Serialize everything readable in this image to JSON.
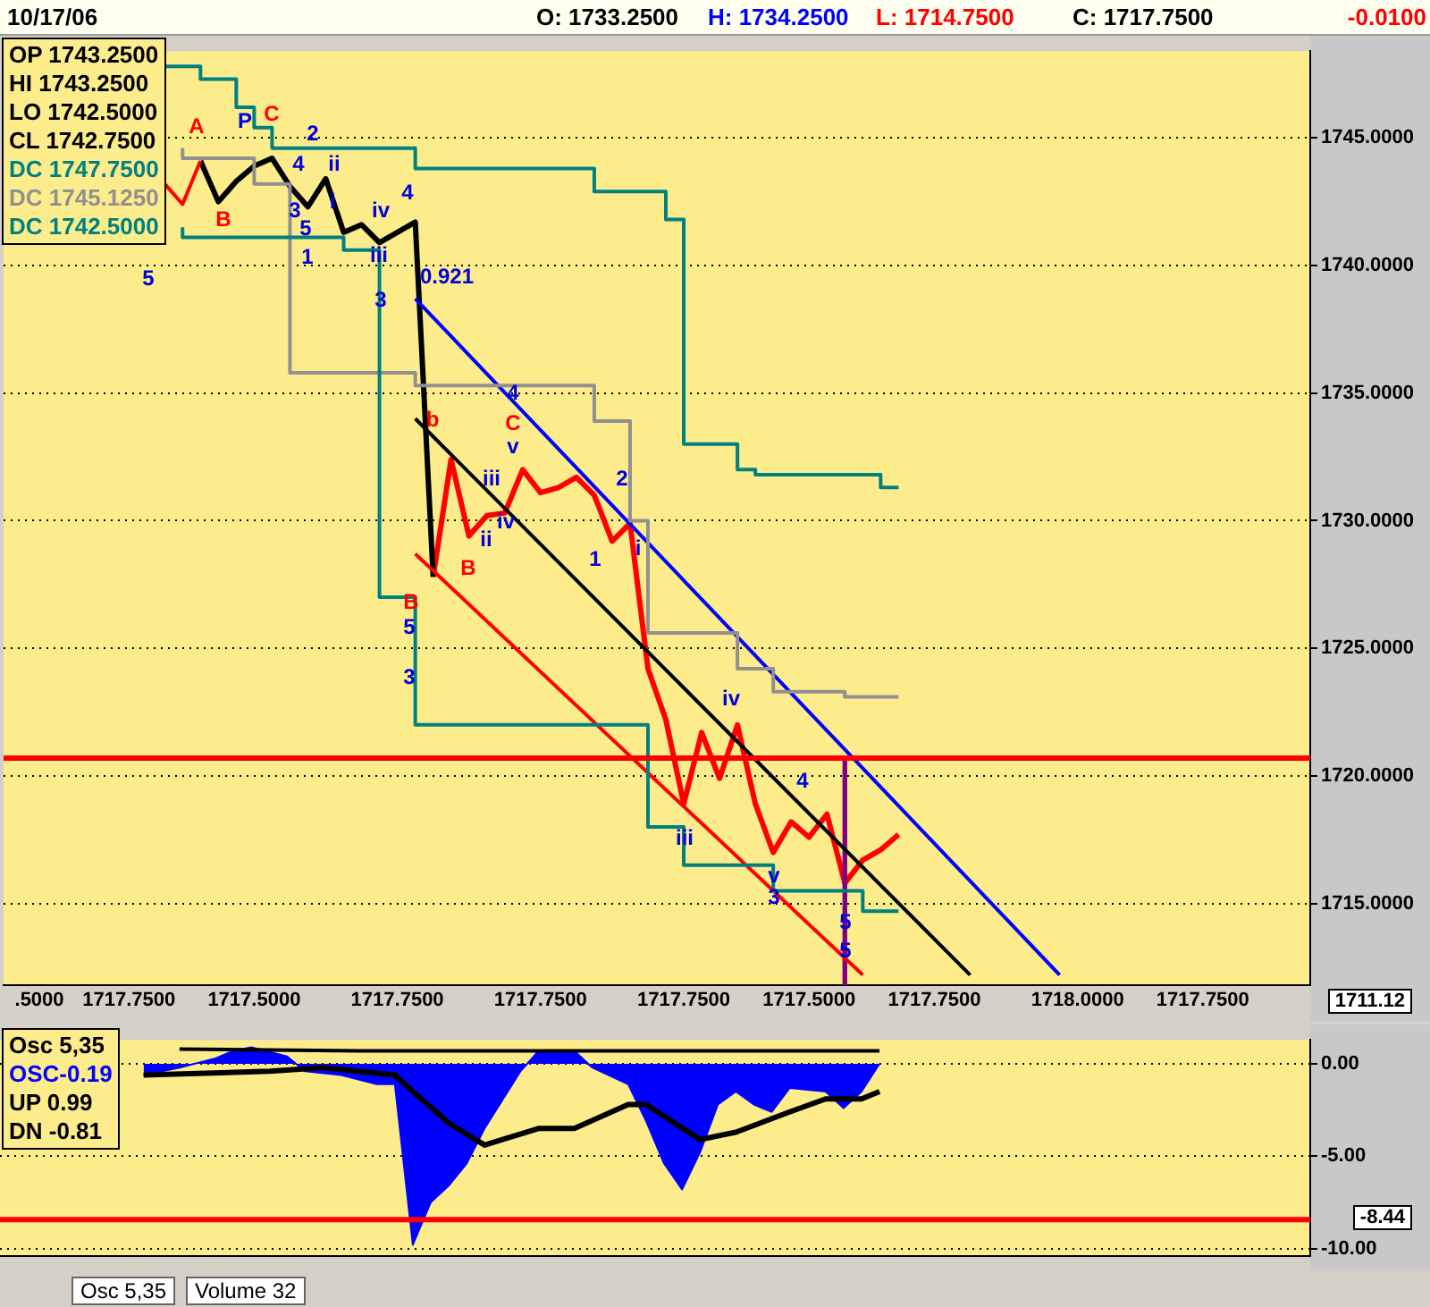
{
  "chart_data": [
    {
      "type": "line",
      "ylim": [
        1711.8,
        1748.4
      ],
      "categories": [
        null,
        null,
        ".5000",
        null,
        null,
        null,
        null,
        "1717.7500",
        null,
        null,
        null,
        null,
        null,
        null,
        "1717.5000",
        null,
        null,
        null,
        null,
        null,
        null,
        null,
        "1717.7500",
        null,
        null,
        null,
        null,
        null,
        null,
        null,
        "1717.7500",
        null,
        null,
        null,
        null,
        null,
        null,
        null,
        "1717.7500",
        null,
        null,
        null,
        null,
        null,
        null,
        "1717.5000",
        null,
        null,
        null,
        null,
        null,
        null,
        "1717.7500",
        null,
        null,
        null,
        null,
        null,
        null,
        null,
        "1718.0000",
        null,
        null,
        null,
        null,
        null,
        null,
        "1717.7500",
        null,
        null,
        null,
        null,
        null,
        null
      ],
      "yticks": [
        {
          "value": 1715,
          "label": "1715.0000"
        },
        {
          "value": 1720,
          "label": "1720.0000"
        },
        {
          "value": 1725,
          "label": "1725.0000"
        },
        {
          "value": 1730,
          "label": "1730.0000"
        },
        {
          "value": 1735,
          "label": "1735.0000"
        },
        {
          "value": 1740,
          "label": "1740.0000"
        },
        {
          "value": 1745,
          "label": "1745.0000"
        }
      ],
      "grid": "y",
      "legend": false,
      "marker": "none",
      "series": [
        {
          "type": "step",
          "color": "#008080",
          "values": [
            null,
            null,
            null,
            null,
            null,
            null,
            null,
            null,
            null,
            1747.8,
            null,
            1747.8,
            null,
            1747.3,
            1746.2,
            1745.4,
            null,
            null,
            null,
            null,
            null,
            null,
            null,
            1744.6,
            null,
            null,
            null,
            null,
            null,
            null,
            null,
            null,
            null,
            1743.8,
            null,
            null,
            null,
            1742.9,
            1741.8,
            null,
            null,
            1733.0,
            1732.0,
            null,
            null,
            null,
            null,
            null,
            null,
            1731.8,
            1731.3,
            null,
            null,
            null,
            null,
            null,
            null,
            null,
            null,
            null,
            null,
            null,
            null,
            null,
            null,
            null,
            null,
            null,
            null,
            null,
            null,
            null,
            null,
            null
          ]
        },
        {
          "type": "step",
          "color": "#008080",
          "values": [
            null,
            null,
            null,
            null,
            null,
            null,
            null,
            null,
            null,
            null,
            1741.5,
            null,
            null,
            null,
            null,
            null,
            null,
            null,
            null,
            1741.1,
            null,
            1740.6,
            null,
            1727.0,
            null,
            null,
            null,
            null,
            null,
            null,
            null,
            null,
            null,
            null,
            null,
            null,
            1722.0,
            null,
            1718.0,
            null,
            null,
            null,
            null,
            1716.5,
            null,
            null,
            null,
            null,
            1715.5,
            1714.7,
            1714.7,
            null,
            null,
            null,
            null,
            null,
            null,
            null,
            null,
            null,
            null,
            null,
            null,
            null,
            null,
            null,
            null,
            null,
            null,
            null,
            null,
            null,
            null,
            null
          ]
        },
        {
          "type": "step",
          "color": "#909090",
          "values": [
            null,
            null,
            null,
            null,
            null,
            null,
            null,
            null,
            null,
            null,
            1744.6,
            null,
            null,
            null,
            1744.2,
            null,
            1743.2,
            null,
            null,
            null,
            null,
            null,
            null,
            1735.8,
            null,
            null,
            null,
            null,
            null,
            null,
            null,
            null,
            null,
            1735.3,
            null,
            1733.9,
            1730.0,
            null,
            null,
            null,
            null,
            1725.6,
            null,
            1724.2,
            null,
            null,
            null,
            1723.3,
            null,
            null,
            1723.1,
            null,
            null,
            null,
            null,
            null,
            null,
            null,
            null,
            null,
            null,
            null,
            null,
            null,
            null,
            null,
            null,
            null,
            null,
            null,
            null,
            null,
            null,
            null
          ]
        },
        {
          "type": "line",
          "color": "#0000ff",
          "values": [
            null,
            null,
            null,
            null,
            null,
            null,
            null,
            null,
            null,
            null,
            null,
            null,
            null,
            null,
            null,
            null,
            null,
            null,
            null,
            null,
            null,
            null,
            null,
            1738.7,
            null,
            null,
            null,
            null,
            null,
            null,
            null,
            null,
            null,
            null,
            null,
            null,
            null,
            null,
            null,
            null,
            null,
            null,
            null,
            null,
            null,
            null,
            null,
            null,
            null,
            null,
            null,
            null,
            null,
            null,
            null,
            null,
            null,
            null,
            null,
            1712.2,
            null,
            null,
            null,
            null,
            null,
            null,
            null,
            null,
            null,
            null,
            null,
            null,
            null,
            null
          ]
        },
        {
          "type": "line",
          "color": "#000000",
          "values": [
            null,
            null,
            null,
            null,
            null,
            null,
            null,
            null,
            null,
            null,
            null,
            null,
            null,
            null,
            null,
            null,
            null,
            null,
            null,
            null,
            null,
            null,
            null,
            1734.0,
            null,
            null,
            null,
            null,
            null,
            null,
            null,
            null,
            null,
            null,
            null,
            null,
            null,
            null,
            null,
            null,
            null,
            null,
            null,
            null,
            null,
            null,
            null,
            null,
            null,
            null,
            null,
            null,
            null,
            null,
            1712.2,
            null,
            null,
            null,
            null,
            null,
            null,
            null,
            null,
            null,
            null,
            null,
            null,
            null,
            null,
            null,
            null,
            null,
            null,
            null
          ]
        },
        {
          "type": "line",
          "color": "#ff0000",
          "values": [
            null,
            null,
            null,
            null,
            null,
            null,
            null,
            null,
            null,
            null,
            null,
            null,
            null,
            null,
            null,
            null,
            null,
            null,
            null,
            null,
            null,
            null,
            null,
            1728.7,
            null,
            null,
            null,
            null,
            null,
            null,
            null,
            null,
            null,
            null,
            null,
            null,
            null,
            null,
            null,
            null,
            null,
            null,
            null,
            null,
            null,
            null,
            null,
            null,
            1712.2,
            null,
            null,
            null,
            null,
            null,
            null,
            null,
            null,
            null,
            null,
            null,
            null,
            null,
            null,
            null,
            null,
            null,
            null,
            null,
            null,
            null,
            null,
            null,
            null,
            null
          ]
        },
        {
          "type": "bar",
          "color": "#800080",
          "values": [
            null,
            null,
            null,
            null,
            null,
            null,
            null,
            null,
            null,
            null,
            null,
            null,
            null,
            null,
            null,
            null,
            null,
            null,
            null,
            null,
            null,
            null,
            null,
            null,
            null,
            null,
            null,
            null,
            null,
            null,
            null,
            null,
            null,
            null,
            null,
            null,
            null,
            null,
            null,
            null,
            null,
            null,
            null,
            null,
            null,
            null,
            null,
            1720.7,
            null,
            null,
            null,
            null,
            null,
            null,
            null,
            null,
            null,
            null,
            null,
            null,
            null,
            null,
            null,
            null,
            null,
            null,
            null,
            null,
            null,
            null,
            null,
            null,
            null,
            null
          ]
        },
        {
          "type": "line",
          "color": "#ff0000",
          "values": [
            null,
            null,
            null,
            null,
            null,
            null,
            null,
            null,
            null,
            1743.2,
            1742.4,
            1744.1,
            null,
            null,
            null,
            null,
            null,
            null,
            null,
            null,
            null,
            null,
            null,
            null,
            null,
            null,
            null,
            null,
            null,
            null,
            null,
            null,
            null,
            null,
            null,
            null,
            null,
            null,
            null,
            null,
            null,
            null,
            null,
            null,
            null,
            null,
            null,
            null,
            null,
            null,
            null,
            null,
            null,
            null,
            null,
            null,
            null,
            null,
            null,
            null,
            null,
            null,
            null,
            null,
            null,
            null,
            null,
            null,
            null,
            null,
            null,
            null,
            null,
            null
          ]
        },
        {
          "type": "line",
          "color": "#000000",
          "values": [
            null,
            null,
            null,
            null,
            null,
            null,
            null,
            null,
            null,
            null,
            null,
            1744.1,
            1742.5,
            1743.3,
            1743.9,
            1744.2,
            1743.1,
            1742.3,
            1743.4,
            1741.3,
            1741.6,
            1740.9,
            1741.3,
            1741.7,
            1727.8,
            null,
            null,
            null,
            null,
            null,
            null,
            null,
            null,
            null,
            null,
            null,
            null,
            null,
            null,
            null,
            null,
            null,
            null,
            null,
            null,
            null,
            null,
            null,
            null,
            null,
            null,
            null,
            null,
            null,
            null,
            null,
            null,
            null,
            null,
            null,
            null,
            null,
            null,
            null,
            null,
            null,
            null,
            null,
            null,
            null,
            null,
            null,
            null,
            null
          ]
        },
        {
          "type": "line",
          "color": "#ff0000",
          "values": [
            null,
            null,
            null,
            null,
            null,
            null,
            null,
            null,
            null,
            null,
            null,
            null,
            null,
            null,
            null,
            null,
            null,
            null,
            null,
            null,
            null,
            null,
            null,
            null,
            1727.8,
            1732.4,
            1729.4,
            1730.2,
            1730.3,
            1732.0,
            1731.1,
            1731.3,
            1731.7,
            1731.0,
            1729.2,
            1729.9,
            1724.2,
            1722.2,
            1718.9,
            1721.7,
            1719.9,
            1722.0,
            1718.9,
            1717.0,
            1718.2,
            1717.6,
            1718.5,
            1715.8,
            1716.7,
            1717.1,
            1717.7,
            null,
            null,
            null,
            null,
            null,
            null,
            null,
            null,
            null,
            null,
            null,
            null,
            null,
            null,
            null,
            null,
            null,
            null,
            null,
            null,
            null,
            null,
            null
          ]
        }
      ],
      "ref_lines": [
        {
          "axis": "y",
          "value": 1720.7,
          "color": "#ff0000"
        }
      ],
      "annotations": [
        "10/17/06",
        "O: 1733.2500",
        "H: 1734.2500",
        "L: 1714.7500",
        "C: 1717.7500",
        "-0.0100",
        "OP 1743.2500",
        "HI 1743.2500",
        "LO 1742.5000",
        "CL 1742.7500",
        "DC 1747.7500",
        "DC 1745.1250",
        "DC 1742.5000",
        "1711.12",
        "A",
        "P",
        "C",
        "2",
        "B",
        "5",
        "1",
        "3",
        "5",
        "4",
        "ii",
        "i",
        "iv",
        "iii",
        "4",
        "0.921",
        "3",
        "4",
        "C",
        "v",
        "b",
        "iii",
        "iv",
        "ii",
        "B",
        "B",
        "5",
        "3",
        "2",
        "1",
        "i",
        "iv",
        "4",
        "iii",
        "v",
        "3",
        "5",
        "5"
      ]
    },
    {
      "type": "area",
      "ylim": [
        -10.4,
        1.3
      ],
      "categories": [
        null,
        null,
        ".5000",
        null,
        null,
        null,
        null,
        "1717.7500",
        null,
        null,
        null,
        null,
        null,
        null,
        "1717.5000",
        null,
        null,
        null,
        null,
        null,
        null,
        null,
        "1717.7500",
        null,
        null,
        null,
        null,
        null,
        null,
        null,
        "1717.7500",
        null,
        null,
        null,
        null,
        null,
        null,
        null,
        "1717.7500",
        null,
        null,
        null,
        null,
        null,
        null,
        "1717.5000",
        null,
        null,
        null,
        null,
        null,
        null,
        "1717.7500",
        null,
        null,
        null,
        null,
        null,
        null,
        null,
        "1718.0000",
        null,
        null,
        null,
        null,
        null,
        null,
        "1717.7500",
        null,
        null,
        null,
        null,
        null,
        null
      ],
      "yticks": [
        {
          "value": -10,
          "label": "-10.00"
        },
        {
          "value": -5,
          "label": "-5.00"
        },
        {
          "value": 0,
          "label": "0.00"
        }
      ],
      "tick_labels": "y",
      "grid": "y",
      "legend": false,
      "marker": "none",
      "series": [
        {
          "type": "area",
          "color": "#0000ff",
          "values": [
            null,
            null,
            null,
            null,
            null,
            null,
            null,
            null,
            -0.6,
            null,
            -0.2,
            null,
            0.3,
            0.7,
            0.9,
            null,
            0.4,
            -0.4,
            null,
            -0.6,
            null,
            -1.1,
            -1.1,
            -9.8,
            -7.5,
            -6.6,
            -5.4,
            -3.5,
            null,
            -0.4,
            0.7,
            null,
            0.7,
            -0.2,
            null,
            -1.1,
            -3.1,
            -5.4,
            -6.8,
            -4.8,
            -2.2,
            -1.5,
            -2.2,
            -2.6,
            -1.3,
            null,
            -1.5,
            -2.4,
            -1.5,
            0.0,
            null,
            null,
            null,
            null,
            null,
            null,
            null,
            null,
            null,
            null,
            null,
            null,
            null,
            null,
            null,
            null,
            null,
            null,
            null,
            null,
            null,
            null,
            null,
            null
          ]
        },
        {
          "type": "line",
          "color": "#000000",
          "values": [
            null,
            null,
            null,
            null,
            null,
            null,
            null,
            null,
            null,
            null,
            0.8,
            null,
            null,
            null,
            null,
            null,
            null,
            null,
            null,
            null,
            0.7,
            null,
            null,
            null,
            null,
            null,
            null,
            null,
            null,
            null,
            null,
            null,
            null,
            null,
            null,
            null,
            null,
            null,
            null,
            null,
            null,
            null,
            null,
            null,
            null,
            null,
            null,
            null,
            null,
            0.7,
            null,
            null,
            null,
            null,
            null,
            null,
            null,
            null,
            null,
            null,
            null,
            null,
            null,
            null,
            null,
            null,
            null,
            null,
            null,
            null,
            null,
            null,
            null,
            null
          ]
        },
        {
          "type": "line",
          "color": "#000000",
          "values": [
            null,
            null,
            null,
            null,
            null,
            null,
            null,
            null,
            -0.6,
            null,
            null,
            null,
            null,
            null,
            null,
            -0.4,
            null,
            null,
            -0.2,
            null,
            null,
            null,
            -0.6,
            -1.5,
            null,
            -3.2,
            null,
            -4.4,
            -4.1,
            null,
            -3.5,
            null,
            -3.5,
            null,
            null,
            -2.2,
            -2.2,
            null,
            null,
            -4.1,
            null,
            -3.7,
            null,
            null,
            -2.6,
            null,
            -1.9,
            null,
            -1.9,
            -1.5,
            null,
            null,
            null,
            null,
            null,
            null,
            null,
            null,
            null,
            null,
            null,
            null,
            null,
            null,
            null,
            null,
            null,
            null,
            null,
            null,
            null,
            null,
            null,
            null
          ]
        }
      ],
      "ref_lines": [
        {
          "axis": "y",
          "value": -8.44,
          "label": "-8.44",
          "color": "#ff0000"
        }
      ],
      "annotations": [
        "Osc 5,35",
        "OSC-0.19",
        "UP 0.99",
        "DN -0.81",
        "Osc 5,35",
        "Volume 32"
      ]
    }
  ]
}
